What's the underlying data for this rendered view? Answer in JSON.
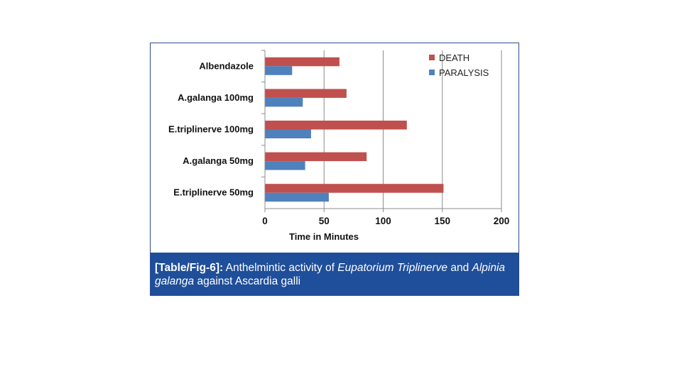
{
  "chart_data": {
    "type": "bar",
    "orientation": "horizontal",
    "categories": [
      "Albendazole",
      "A.galanga 100mg",
      "E.triplinerve 100mg",
      "A.galanga 50mg",
      "E.triplinerve 50mg"
    ],
    "series": [
      {
        "name": "DEATH",
        "color": "#c0504d",
        "values": [
          63,
          69,
          120,
          86,
          151
        ]
      },
      {
        "name": "PARALYSIS",
        "color": "#4f81bd",
        "values": [
          23,
          32,
          39,
          34,
          54
        ]
      }
    ],
    "x_ticks": [
      "0",
      "50",
      "100",
      "150",
      "200"
    ],
    "xlim": [
      0,
      200
    ],
    "xlabel": "Time in Minutes",
    "grid": true,
    "legend_position": "top-right"
  },
  "caption": {
    "label": "[Table/Fig-6]:",
    "text_1": " Anthelmintic activity of ",
    "species_1": "Eupatorium Triplinerve",
    "text_2": " and ",
    "species_2": "Alpinia galanga",
    "text_3": " against Ascardia galli"
  }
}
